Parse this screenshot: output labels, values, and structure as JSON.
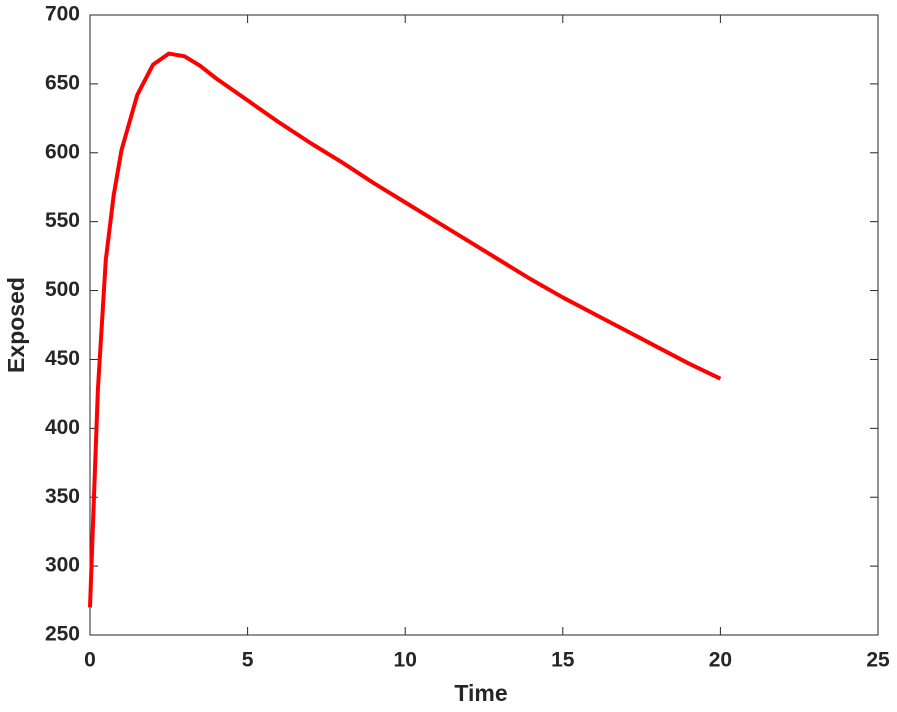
{
  "chart_data": {
    "type": "line",
    "xlabel": "Time",
    "ylabel": "Exposed",
    "x": [
      0,
      0.1,
      0.25,
      0.5,
      0.75,
      1,
      1.5,
      2,
      2.5,
      3,
      3.5,
      4,
      5,
      6,
      7,
      8,
      9,
      10,
      11,
      12,
      13,
      14,
      15,
      16,
      17,
      18,
      19,
      20
    ],
    "values": [
      270,
      334,
      428,
      522,
      569,
      602,
      642,
      664,
      672,
      670,
      663,
      654,
      638,
      622,
      607,
      593,
      578,
      564,
      550,
      536,
      522,
      508,
      495,
      483,
      471,
      459,
      447,
      436
    ],
    "color": "#ff0000",
    "xlim": [
      0,
      25
    ],
    "xticks": [
      0,
      5,
      10,
      15,
      20,
      25
    ],
    "ylim": [
      250,
      700
    ],
    "yticks": [
      250,
      300,
      350,
      400,
      450,
      500,
      550,
      600,
      650,
      700
    ],
    "grid": false
  }
}
